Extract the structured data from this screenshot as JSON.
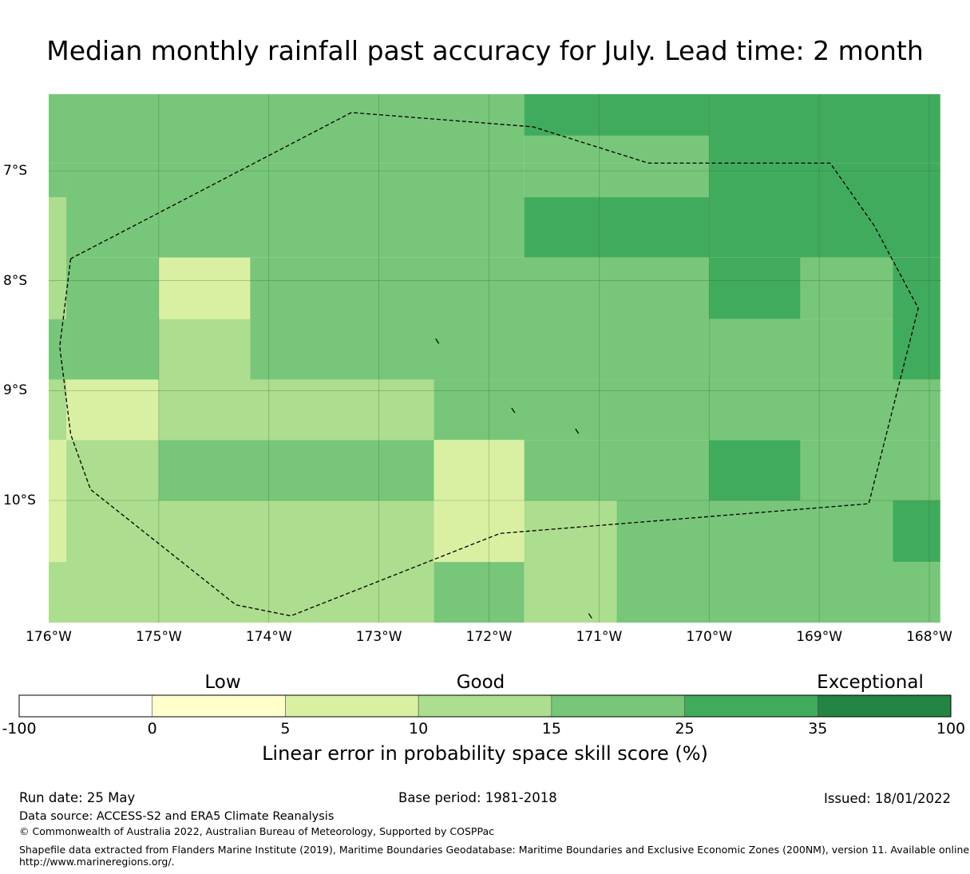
{
  "title": "Median monthly rainfall past accuracy for July. Lead time: 2 month",
  "map": {
    "lon_ticks": [
      "176°W",
      "175°W",
      "174°W",
      "173°W",
      "172°W",
      "171°W",
      "170°W",
      "169°W",
      "168°W"
    ],
    "lat_ticks": [
      "7°S",
      "8°S",
      "9°S",
      "10°S"
    ],
    "lon_range": [
      -176,
      -167.9
    ],
    "lat_range": [
      -11.2,
      -6.3
    ],
    "grid_cells": [
      {
        "lon": [
          -176,
          -171.68
        ],
        "lat": [
          -6.93,
          -6.3
        ],
        "class": 4
      },
      {
        "lon": [
          -171.68,
          -170.0
        ],
        "lat": [
          -6.68,
          -6.3
        ],
        "class": 5
      },
      {
        "lon": [
          -171.68,
          -170.0
        ],
        "lat": [
          -6.93,
          -6.68
        ],
        "class": 4
      },
      {
        "lon": [
          -170.0,
          -167.9
        ],
        "lat": [
          -6.93,
          -6.3
        ],
        "class": 5
      },
      {
        "lon": [
          -176,
          -175.84
        ],
        "lat": [
          -8.35,
          -7.24
        ],
        "class": 3
      },
      {
        "lon": [
          -175.84,
          -171.68
        ],
        "lat": [
          -7.79,
          -6.93
        ],
        "class": 4
      },
      {
        "lon": [
          -176,
          -175.84
        ],
        "lat": [
          -7.24,
          -6.93
        ],
        "class": 4
      },
      {
        "lon": [
          -171.68,
          -170.0
        ],
        "lat": [
          -7.24,
          -6.93
        ],
        "class": 4
      },
      {
        "lon": [
          -171.68,
          -170.0
        ],
        "lat": [
          -7.79,
          -7.24
        ],
        "class": 5
      },
      {
        "lon": [
          -170.0,
          -167.9
        ],
        "lat": [
          -7.79,
          -6.93
        ],
        "class": 5
      },
      {
        "lon": [
          -175.84,
          -175.0
        ],
        "lat": [
          -8.9,
          -7.79
        ],
        "class": 4
      },
      {
        "lon": [
          -175.0,
          -174.17
        ],
        "lat": [
          -8.35,
          -7.79
        ],
        "class": 2
      },
      {
        "lon": [
          -175.0,
          -174.17
        ],
        "lat": [
          -8.9,
          -8.35
        ],
        "class": 3
      },
      {
        "lon": [
          -174.17,
          -170.0
        ],
        "lat": [
          -8.9,
          -7.79
        ],
        "class": 4
      },
      {
        "lon": [
          -170.0,
          -169.17
        ],
        "lat": [
          -8.35,
          -7.79
        ],
        "class": 5
      },
      {
        "lon": [
          -169.17,
          -168.33
        ],
        "lat": [
          -8.35,
          -7.79
        ],
        "class": 4
      },
      {
        "lon": [
          -168.33,
          -167.9
        ],
        "lat": [
          -8.9,
          -7.79
        ],
        "class": 5
      },
      {
        "lon": [
          -170.0,
          -168.33
        ],
        "lat": [
          -8.9,
          -8.35
        ],
        "class": 4
      },
      {
        "lon": [
          -176,
          -175.84
        ],
        "lat": [
          -8.9,
          -8.35
        ],
        "class": 4
      },
      {
        "lon": [
          -176,
          -175.84
        ],
        "lat": [
          -9.45,
          -8.9
        ],
        "class": 3
      },
      {
        "lon": [
          -175.84,
          -175.0
        ],
        "lat": [
          -9.45,
          -8.9
        ],
        "class": 2
      },
      {
        "lon": [
          -175.0,
          -172.5
        ],
        "lat": [
          -9.45,
          -8.9
        ],
        "class": 3
      },
      {
        "lon": [
          -172.5,
          -167.9
        ],
        "lat": [
          -9.45,
          -8.9
        ],
        "class": 4
      },
      {
        "lon": [
          -176,
          -175.84
        ],
        "lat": [
          -10.56,
          -9.45
        ],
        "class": 2
      },
      {
        "lon": [
          -175.84,
          -175.0
        ],
        "lat": [
          -10.0,
          -9.45
        ],
        "class": 3
      },
      {
        "lon": [
          -175.0,
          -172.5
        ],
        "lat": [
          -10.0,
          -9.45
        ],
        "class": 4
      },
      {
        "lon": [
          -172.5,
          -171.68
        ],
        "lat": [
          -10.56,
          -9.45
        ],
        "class": 2
      },
      {
        "lon": [
          -171.68,
          -170.0
        ],
        "lat": [
          -10.0,
          -9.45
        ],
        "class": 4
      },
      {
        "lon": [
          -170.0,
          -169.17
        ],
        "lat": [
          -10.0,
          -9.45
        ],
        "class": 5
      },
      {
        "lon": [
          -169.17,
          -167.9
        ],
        "lat": [
          -10.0,
          -9.45
        ],
        "class": 4
      },
      {
        "lon": [
          -175.84,
          -172.5
        ],
        "lat": [
          -11.2,
          -10.0
        ],
        "class": 3
      },
      {
        "lon": [
          -176,
          -175.84
        ],
        "lat": [
          -11.2,
          -10.56
        ],
        "class": 3
      },
      {
        "lon": [
          -172.5,
          -171.68
        ],
        "lat": [
          -11.2,
          -10.56
        ],
        "class": 4
      },
      {
        "lon": [
          -171.68,
          -170.84
        ],
        "lat": [
          -11.2,
          -10.0
        ],
        "class": 3
      },
      {
        "lon": [
          -170.84,
          -168.33
        ],
        "lat": [
          -11.2,
          -10.0
        ],
        "class": 4
      },
      {
        "lon": [
          -168.33,
          -167.9
        ],
        "lat": [
          -10.56,
          -10.0
        ],
        "class": 5
      },
      {
        "lon": [
          -168.33,
          -167.9
        ],
        "lat": [
          -11.2,
          -10.56
        ],
        "class": 4
      }
    ],
    "eez_boundary": [
      [
        -175.8,
        -7.8
      ],
      [
        -175.9,
        -8.6
      ],
      [
        -175.8,
        -9.4
      ],
      [
        -175.62,
        -9.9
      ],
      [
        -174.3,
        -10.95
      ],
      [
        -173.8,
        -11.05
      ],
      [
        -171.9,
        -10.3
      ],
      [
        -168.55,
        -10.03
      ],
      [
        -168.1,
        -8.25
      ],
      [
        -168.5,
        -7.5
      ],
      [
        -168.9,
        -6.93
      ],
      [
        -170.55,
        -6.93
      ],
      [
        -171.6,
        -6.6
      ],
      [
        -173.25,
        -6.47
      ],
      [
        -175.8,
        -7.8
      ]
    ],
    "islands": [
      {
        "lon": -172.47,
        "lat": -8.55
      },
      {
        "lon": -171.78,
        "lat": -9.18
      },
      {
        "lon": -171.2,
        "lat": -9.37
      },
      {
        "lon": -171.08,
        "lat": -11.05
      }
    ]
  },
  "colorbar": {
    "categories": [
      {
        "label": "Low",
        "value_center": 5
      },
      {
        "label": "Good",
        "value_center": 15
      },
      {
        "label": "Exceptional",
        "value_center": 35
      }
    ],
    "ticks": [
      "-100",
      "0",
      "5",
      "10",
      "15",
      "25",
      "35",
      "100"
    ],
    "colors": [
      "#ffffff",
      "#ffffcc",
      "#d9f0a3",
      "#addd8e",
      "#78c679",
      "#41ab5d",
      "#238443"
    ],
    "label": "Linear error in probability space skill score (%)"
  },
  "footer": {
    "run_date": "Run date: 25 May",
    "base_period": "Base period: 1981-2018",
    "issued": "Issued: 18/01/2022",
    "data_source": "Data source: ACCESS-S2 and ERA5 Climate Reanalysis",
    "copyright": "© Commonwealth of Australia 2022, Australian Bureau of Meteorology, Supported by COSPPac",
    "shapefile_line1": "Shapefile data extracted from Flanders Marine Institute (2019), Maritime Boundaries Geodatabase: Maritime Boundaries and Exclusive Economic Zones (200NM), version 11. Available online at",
    "shapefile_line2": "http://www.marineregions.org/."
  }
}
